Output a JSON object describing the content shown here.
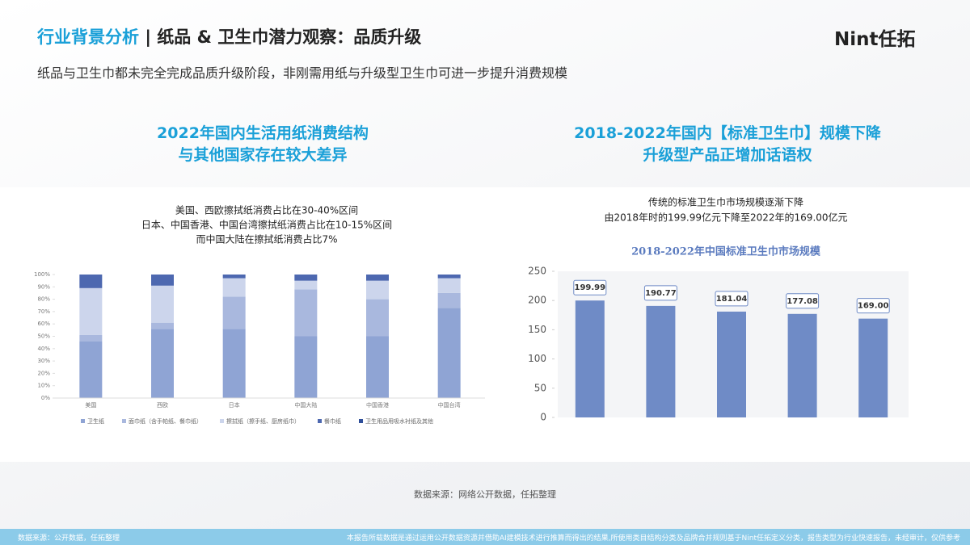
{
  "header": {
    "title_prefix": "行业背景分析",
    "title": "| 纸品 & 卫生巾潜力观察：品质升级",
    "logo": "Nint任拓",
    "subtitle": "纸品与卫生巾都未完全完成品质升级阶段，非刚需用纸与升级型卫生巾可进一步提升消费规模"
  },
  "sections": [
    {
      "heading": [
        "2022年国内生活用纸消费结构",
        "与其他国家存在较大差异"
      ]
    },
    {
      "heading": [
        "2018-2022年国内【标准卫生巾】规模下降",
        "升级型产品正增加话语权"
      ]
    }
  ],
  "chart_data": [
    {
      "type": "stacked_bar",
      "annotations": [
        "美国、西欧擦拭纸消费占比在30-40%区间",
        "日本、中国香港、中国台湾擦拭纸消费占比在10-15%区间",
        "而中国大陆在擦拭纸消费占比7%"
      ],
      "categories": [
        "美国",
        "西欧",
        "日本",
        "中国大陆",
        "中国香港",
        "中国台湾"
      ],
      "series": [
        {
          "name": "卫生纸",
          "color": "#8fa4d4",
          "values": [
            46,
            56,
            56,
            50,
            50,
            73
          ]
        },
        {
          "name": "面巾纸（含手帕纸、餐巾纸）",
          "color": "#a9b8de",
          "values": [
            5,
            5,
            26,
            38,
            30,
            12
          ]
        },
        {
          "name": "擦拭纸（擦手纸、厨房纸巾）",
          "color": "#ccd5ec",
          "values": [
            38,
            30,
            15,
            7,
            15,
            12
          ]
        },
        {
          "name": "餐巾纸",
          "color": "#4d68b0",
          "values": [
            11,
            9,
            3,
            5,
            5,
            3
          ]
        },
        {
          "name": "卫生用品用吸水衬纸及其他",
          "color": "#2f4f9a",
          "values": [
            0,
            0,
            0,
            0,
            0,
            0
          ]
        }
      ],
      "ylim": [
        0,
        100
      ],
      "yticks": [
        {
          "value": 0,
          "label": "0%"
        },
        {
          "value": 10,
          "label": "10%"
        },
        {
          "value": 20,
          "label": "20%"
        },
        {
          "value": 30,
          "label": "30%"
        },
        {
          "value": 40,
          "label": "40%"
        },
        {
          "value": 50,
          "label": "50%"
        },
        {
          "value": 60,
          "label": "60%"
        },
        {
          "value": 70,
          "label": "70%"
        },
        {
          "value": 80,
          "label": "80%"
        },
        {
          "value": 90,
          "label": "90%"
        },
        {
          "value": 100,
          "label": "100%"
        }
      ],
      "legend": "bottom"
    },
    {
      "type": "bar",
      "annotations": [
        "传统的标准卫生巾市场规模逐渐下降",
        "由2018年时的199.99亿元下降至2022年的169.00亿元"
      ],
      "title": "2018-2022年中国标准卫生巾市场规模",
      "categories": [
        null,
        null,
        null,
        null,
        null
      ],
      "values": [
        199.99,
        190.77,
        181.04,
        177.08,
        169
      ],
      "value_labels": [
        "199.99",
        "190.77",
        "181.04",
        "177.08",
        "169.00"
      ],
      "color": "#6f8bc6",
      "ylim": [
        0,
        250
      ],
      "yticks": [
        0,
        50,
        100,
        150,
        200,
        250
      ]
    }
  ],
  "source": "数据来源：网络公开数据，任拓整理",
  "footer": {
    "left": "数据来源：公开数据，任拓整理",
    "right": "本报告所载数据是通过运用公开数据资源并借助AI建模技术进行推算而得出的结果,所使用类目结构分类及品牌合并规则基于Nint任拓定义分类，报告类型为行业快速报告，未经审计，仅供参考"
  }
}
